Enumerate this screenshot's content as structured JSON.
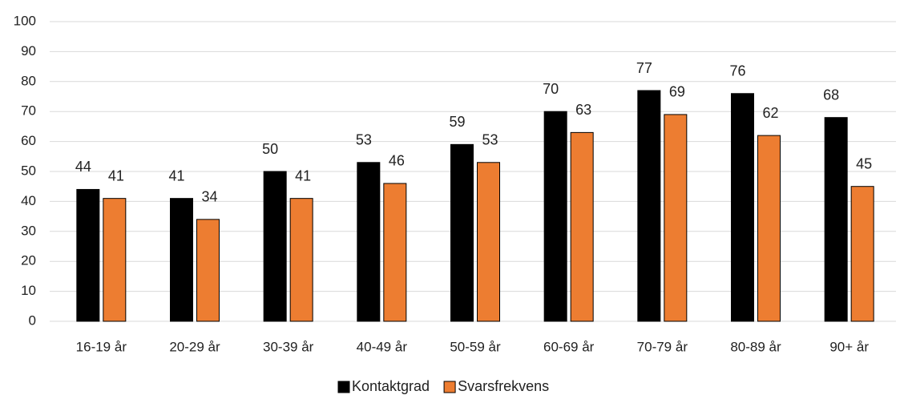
{
  "chart_data": {
    "type": "bar",
    "categories": [
      "16-19 år",
      "20-29 år",
      "30-39 år",
      "40-49 år",
      "50-59 år",
      "60-69 år",
      "70-79 år",
      "80-89 år",
      "90+ år"
    ],
    "series": [
      {
        "name": "Kontaktgrad",
        "color": "#000000",
        "values": [
          44,
          41,
          50,
          53,
          59,
          70,
          77,
          76,
          68
        ]
      },
      {
        "name": "Svarsfrekvens",
        "color": "#ed7d31",
        "values": [
          41,
          34,
          41,
          46,
          53,
          63,
          69,
          62,
          45
        ]
      }
    ],
    "ylim": [
      0,
      100
    ],
    "yticks": [
      0,
      10,
      20,
      30,
      40,
      50,
      60,
      70,
      80,
      90,
      100
    ],
    "grid": true,
    "legend": "bottom"
  }
}
